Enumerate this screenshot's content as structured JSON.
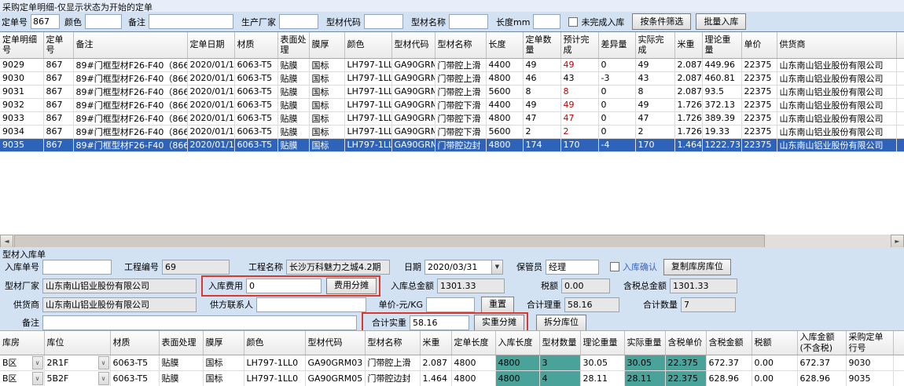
{
  "colors": {
    "selected_row": "#2e63b9",
    "red_value": "#c80000",
    "teal_cell": "#4aa39a",
    "annotation_box": "#d9392a",
    "checkbox_blue_label": "#3464c4"
  },
  "top_panel": {
    "title": "采购定单明细-仅显示状态为开始的定单",
    "filters": [
      {
        "label": "定单号",
        "value": "867"
      },
      {
        "label": "颜色",
        "value": ""
      },
      {
        "label": "备注",
        "value": ""
      },
      {
        "label": "生产厂家",
        "value": ""
      },
      {
        "label": "型材代码",
        "value": ""
      },
      {
        "label": "型材名称",
        "value": ""
      },
      {
        "label": "长度mm",
        "value": ""
      }
    ],
    "unfinished_checkbox_label": "未完成入库",
    "filter_button": "按条件筛选",
    "batch_button": "批量入库"
  },
  "order_table": {
    "columns": [
      "定单明细号",
      "定单号",
      "备注",
      "定单日期",
      "材质",
      "表面处理",
      "膜厚",
      "颜色",
      "型材代码",
      "型材名称",
      "长度",
      "定单数量",
      "预计完成",
      "差异量",
      "实际完成",
      "米重",
      "理论重量",
      "单价",
      "供货商",
      ""
    ],
    "rows": [
      {
        "selected": false,
        "cells": [
          "9029",
          "867",
          "89#门框型材F26-F40（866+867）",
          "2020/01/13",
          "6063-T5",
          "贴膜",
          "国标",
          "LH797-1LL0",
          "GA90GRM03",
          "门带腔上滑",
          "4400",
          "49",
          {
            "t": "49",
            "c": "red"
          },
          "0",
          "49",
          "2.087",
          "449.96",
          "22375",
          "山东南山铝业股份有限公司",
          ""
        ]
      },
      {
        "selected": false,
        "cells": [
          "9030",
          "867",
          "89#门框型材F26-F40（866+867）",
          "2020/01/13",
          "6063-T5",
          "贴膜",
          "国标",
          "LH797-1LL0",
          "GA90GRM03",
          "门带腔上滑",
          "4800",
          "46",
          "43",
          "-3",
          "43",
          "2.087",
          "460.81",
          "22375",
          "山东南山铝业股份有限公司",
          ""
        ]
      },
      {
        "selected": false,
        "cells": [
          "9031",
          "867",
          "89#门框型材F26-F40（866+867）",
          "2020/01/13",
          "6063-T5",
          "贴膜",
          "国标",
          "LH797-1LL0",
          "GA90GRM03",
          "门带腔上滑",
          "5600",
          "8",
          {
            "t": "8",
            "c": "red"
          },
          "0",
          "8",
          "2.087",
          "93.5",
          "22375",
          "山东南山铝业股份有限公司",
          ""
        ]
      },
      {
        "selected": false,
        "cells": [
          "9032",
          "867",
          "89#门框型材F26-F40（866+867）",
          "2020/01/13",
          "6063-T5",
          "贴膜",
          "国标",
          "LH797-1LL0",
          "GA90GRM04",
          "门带腔下滑",
          "4400",
          "49",
          {
            "t": "49",
            "c": "red"
          },
          "0",
          "49",
          "1.726",
          "372.13",
          "22375",
          "山东南山铝业股份有限公司",
          ""
        ]
      },
      {
        "selected": false,
        "cells": [
          "9033",
          "867",
          "89#门框型材F26-F40（866+867）",
          "2020/01/13",
          "6063-T5",
          "贴膜",
          "国标",
          "LH797-1LL0",
          "GA90GRM04",
          "门带腔下滑",
          "4800",
          "47",
          {
            "t": "47",
            "c": "red"
          },
          "0",
          "47",
          "1.726",
          "389.39",
          "22375",
          "山东南山铝业股份有限公司",
          ""
        ]
      },
      {
        "selected": false,
        "cells": [
          "9034",
          "867",
          "89#门框型材F26-F40（866+867）",
          "2020/01/13",
          "6063-T5",
          "贴膜",
          "国标",
          "LH797-1LL0",
          "GA90GRM04",
          "门带腔下滑",
          "5600",
          "2",
          {
            "t": "2",
            "c": "red"
          },
          "0",
          "2",
          "1.726",
          "19.33",
          "22375",
          "山东南山铝业股份有限公司",
          ""
        ]
      },
      {
        "selected": true,
        "cells": [
          "9035",
          "867",
          "89#门框型材F26-F40（866+867）",
          "2020/01/13",
          "6063-T5",
          "贴膜",
          "国标",
          "LH797-1LL0",
          "GA90GRM05",
          "门带腔边封",
          "4800",
          "174",
          "170",
          "-4",
          "170",
          "1.464",
          "1222.73",
          "22375",
          "山东南山铝业股份有限公司",
          ""
        ]
      }
    ]
  },
  "form": {
    "title": "型材入库单",
    "row1": {
      "stock_no_label": "入库单号",
      "stock_no_value": "",
      "project_no_label": "工程编号",
      "project_no_value": "69",
      "project_name_label": "工程名称",
      "project_name_value": "长沙万科魅力之城4.2期",
      "date_label": "日期",
      "date_value": "2020/03/31",
      "keeper_label": "保管员",
      "keeper_value": "经理",
      "confirm_label": "入库确认",
      "copy_button": "复制库房库位"
    },
    "row2": {
      "factory_label": "型材厂家",
      "factory_value": "山东南山铝业股份有限公司",
      "fee_label": "入库费用",
      "fee_value": "0",
      "fee_share_button": "费用分摊",
      "total_label": "入库总金额",
      "total_value": "1301.33",
      "tax_label": "税额",
      "tax_value": "0.00",
      "tax_total_label": "含税总金额",
      "tax_total_value": "1301.33"
    },
    "row3": {
      "supplier_label": "供货商",
      "supplier_value": "山东南山铝业股份有限公司",
      "contact_label": "供方联系人",
      "contact_value": "",
      "unit_price_label": "单价-元/KG",
      "unit_price_value": "",
      "reset_button": "重置",
      "theory_weight_label": "合计理重",
      "theory_weight_value": "58.16",
      "qty_label": "合计数量",
      "qty_value": "7"
    },
    "row4": {
      "remark_label": "备注",
      "remark_value": "",
      "actual_weight_label": "合计实重",
      "actual_weight_value": "58.16",
      "weight_share_button": "实重分摊",
      "split_button": "拆分库位"
    }
  },
  "warehouse_table": {
    "columns": [
      "库房",
      "库位",
      "材质",
      "表面处理",
      "膜厚",
      "颜色",
      "型材代码",
      "型材名称",
      "米重",
      "定单长度",
      "入库长度",
      "型材数量",
      "理论重量",
      "实际重量",
      "含税单价",
      "含税金额",
      "税额",
      "入库金额(不含税)",
      "采购定单行号",
      ""
    ],
    "rows": [
      {
        "selected": false,
        "cells": [
          {
            "t": "B区",
            "c": "combo"
          },
          {
            "t": "2R1F",
            "c": "combo"
          },
          "6063-T5",
          "贴膜",
          "国标",
          "LH797-1LL0",
          "GA90GRM03",
          "门带腔上滑",
          "2.087",
          "4800",
          {
            "t": "4800",
            "c": "teal"
          },
          {
            "t": "3",
            "c": "teal"
          },
          "30.05",
          {
            "t": "30.05",
            "c": "teal"
          },
          {
            "t": "22.375",
            "c": "teal"
          },
          "672.37",
          "0.00",
          "672.37",
          "9030",
          ""
        ]
      },
      {
        "selected": false,
        "cells": [
          {
            "t": "B区",
            "c": "combo"
          },
          {
            "t": "5B2F",
            "c": "combo"
          },
          "6063-T5",
          "贴膜",
          "国标",
          "LH797-1LL0",
          "GA90GRM05",
          "门带腔边封",
          "1.464",
          "4800",
          {
            "t": "4800",
            "c": "teal"
          },
          {
            "t": "4",
            "c": "teal"
          },
          "28.11",
          {
            "t": "28.11",
            "c": "teal"
          },
          {
            "t": "22.375",
            "c": "teal"
          },
          "628.96",
          "0.00",
          "628.96",
          "9035",
          ""
        ]
      }
    ]
  }
}
